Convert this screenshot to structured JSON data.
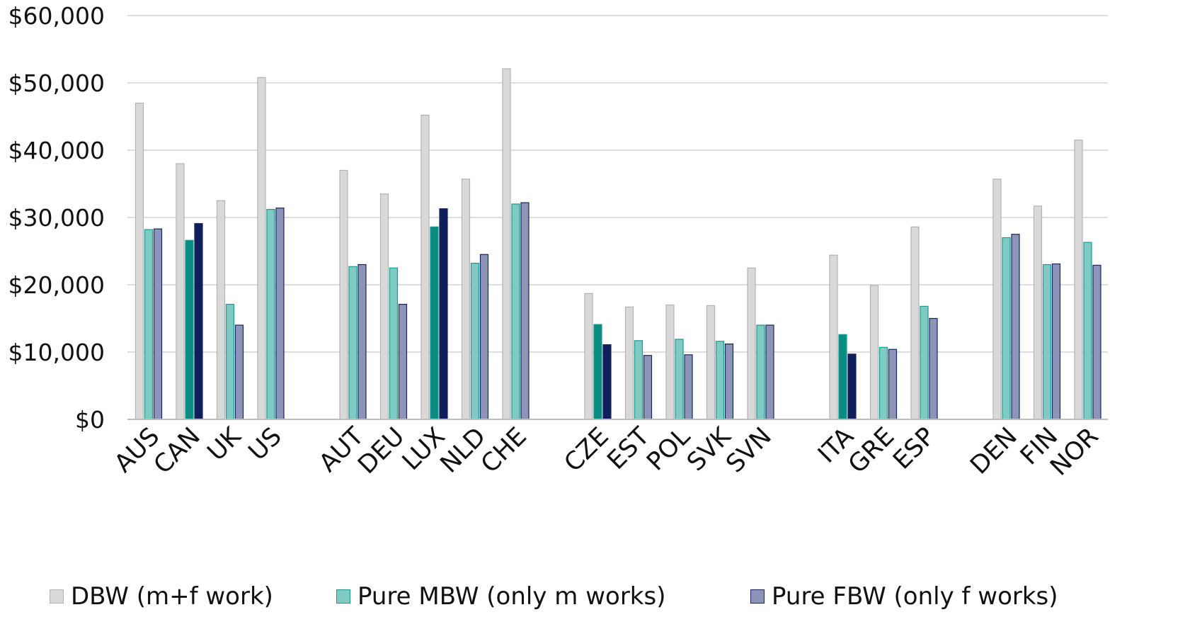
{
  "chart_data": {
    "type": "bar",
    "groups": [
      [
        "AUS",
        "CAN",
        "UK",
        "US"
      ],
      [
        "AUT",
        "DEU",
        "LUX",
        "NLD",
        "CHE"
      ],
      [
        "CZE",
        "EST",
        "POL",
        "SVK",
        "SVN"
      ],
      [
        "ITA",
        "GRE",
        "ESP"
      ],
      [
        "DEN",
        "FIN",
        "NOR"
      ]
    ],
    "categories": [
      "AUS",
      "CAN",
      "UK",
      "US",
      "AUT",
      "DEU",
      "LUX",
      "NLD",
      "CHE",
      "CZE",
      "EST",
      "POL",
      "SVK",
      "SVN",
      "ITA",
      "GRE",
      "ESP",
      "DEN",
      "FIN",
      "NOR"
    ],
    "series": [
      {
        "name": "DBW (m+f work)",
        "values": [
          47000,
          38000,
          32500,
          50800,
          37000,
          33500,
          45200,
          35700,
          52100,
          18700,
          16700,
          17000,
          16900,
          22500,
          24400,
          19900,
          28600,
          35700,
          31700,
          41500
        ]
      },
      {
        "name": "Pure MBW (only m works)",
        "values": [
          28200,
          26600,
          17100,
          31200,
          22700,
          22500,
          28600,
          23200,
          32000,
          14100,
          11700,
          11900,
          11600,
          14000,
          12600,
          10700,
          16800,
          27000,
          23000,
          26300
        ]
      },
      {
        "name": "Pure FBW (only f works)",
        "values": [
          28300,
          29100,
          14000,
          31400,
          23000,
          17100,
          31300,
          24500,
          32200,
          11100,
          9500,
          9600,
          11200,
          14000,
          9700,
          10400,
          15000,
          27500,
          23100,
          22900
        ]
      }
    ],
    "highlighted_categories": [
      "CAN",
      "LUX",
      "CZE",
      "ITA"
    ],
    "yticks": [
      "$0",
      "$10,000",
      "$20,000",
      "$30,000",
      "$40,000",
      "$50,000",
      "$60,000"
    ],
    "ylim": [
      0,
      60000
    ],
    "grid": true,
    "legend_position": "bottom",
    "colors": {
      "dbw_fill": "#d9d9d9",
      "dbw_stroke": "#b3b3b3",
      "mbw_fill": "#7fcac3",
      "mbw_stroke": "#1b9a90",
      "fbw_fill": "#8c95b8",
      "fbw_stroke": "#1a2460",
      "mbw_highlight": "#0a8c82",
      "fbw_highlight": "#0f1e5c",
      "grid": "#d4d4d4",
      "axis": "#bfbfbf"
    }
  },
  "legend": {
    "items": [
      {
        "label": "DBW (m+f work)",
        "color_key": "dbw"
      },
      {
        "label": "Pure MBW (only m works)",
        "color_key": "mbw"
      },
      {
        "label": "Pure FBW (only f works)",
        "color_key": "fbw"
      }
    ]
  }
}
